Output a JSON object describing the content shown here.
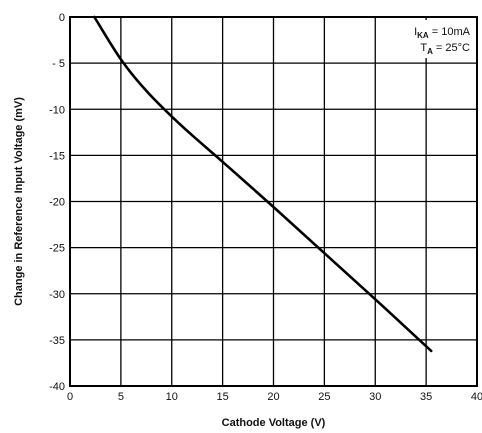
{
  "chart_data": {
    "type": "line",
    "xlabel": "Cathode Voltage (V)",
    "ylabel": "Change in Reference Input Voltage  (mV)",
    "xlim": [
      0,
      40
    ],
    "ylim": [
      -40,
      0
    ],
    "x_ticks": [
      0,
      5,
      10,
      15,
      20,
      25,
      30,
      35,
      40
    ],
    "y_ticks": [
      0,
      -5,
      -10,
      -15,
      -20,
      -25,
      -30,
      -35,
      -40
    ],
    "x_tick_labels": [
      "0",
      "5",
      "10",
      "15",
      "20",
      "25",
      "30",
      "35",
      "40"
    ],
    "y_tick_labels": [
      "0",
      "- 5",
      "-10",
      "-15",
      "-20",
      "-25",
      "-30",
      "-35",
      "-40"
    ],
    "grid": true,
    "annotation": {
      "line1": {
        "main": "I",
        "sub": "KA",
        "rest": " = 10mA"
      },
      "line2": {
        "main": "T",
        "sub": "A",
        "rest": " = 25°C"
      },
      "placement": "top-right"
    },
    "series": [
      {
        "color": "#000000",
        "points": [
          [
            2.4,
            0.0
          ],
          [
            5.0,
            -4.6
          ],
          [
            7.5,
            -8.0
          ],
          [
            10.0,
            -10.8
          ],
          [
            12.5,
            -13.3
          ],
          [
            15.0,
            -15.7
          ],
          [
            20.0,
            -20.6
          ],
          [
            25.0,
            -25.6
          ],
          [
            30.0,
            -30.6
          ],
          [
            35.5,
            -36.2
          ]
        ]
      }
    ]
  }
}
